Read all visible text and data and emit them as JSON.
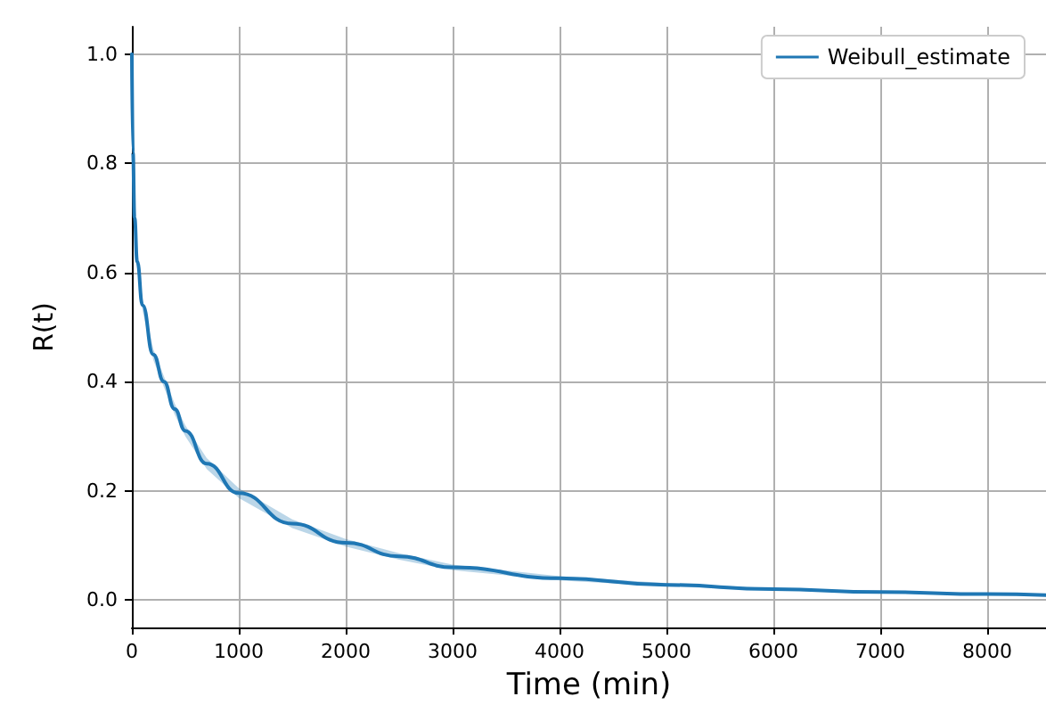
{
  "chart_data": {
    "type": "line",
    "xlabel": "Time (min)",
    "ylabel": "R(t)",
    "x": [
      0,
      10,
      25,
      50,
      100,
      200,
      300,
      400,
      500,
      700,
      1000,
      1500,
      2000,
      2500,
      3000,
      4000,
      5000,
      6000,
      7000,
      8000,
      8550
    ],
    "series": [
      {
        "name": "Weibull_estimate",
        "color": "#1f77b4",
        "values": [
          1.0,
          0.82,
          0.7,
          0.62,
          0.54,
          0.45,
          0.4,
          0.35,
          0.31,
          0.25,
          0.196,
          0.14,
          0.105,
          0.08,
          0.06,
          0.04,
          0.028,
          0.02,
          0.015,
          0.011,
          0.009
        ],
        "lower": [
          1.0,
          0.81,
          0.69,
          0.61,
          0.53,
          0.44,
          0.39,
          0.34,
          0.3,
          0.24,
          0.187,
          0.132,
          0.098,
          0.074,
          0.055,
          0.036,
          0.025,
          0.018,
          0.013,
          0.009,
          0.007
        ],
        "upper": [
          1.0,
          0.83,
          0.71,
          0.63,
          0.55,
          0.46,
          0.41,
          0.36,
          0.32,
          0.26,
          0.205,
          0.148,
          0.112,
          0.086,
          0.065,
          0.044,
          0.031,
          0.022,
          0.017,
          0.013,
          0.011
        ]
      }
    ],
    "xlim": [
      0,
      8550
    ],
    "xticks": [
      0,
      1000,
      2000,
      3000,
      4000,
      5000,
      6000,
      7000,
      8000
    ],
    "ylim": [
      -0.05,
      1.05
    ],
    "yticks": [
      {
        "value": 0,
        "label": "0.0"
      },
      {
        "value": 0.2,
        "label": "0.2"
      },
      {
        "value": 0.4,
        "label": "0.4"
      },
      {
        "value": 0.6,
        "label": "0.6"
      },
      {
        "value": 0.8,
        "label": "0.8"
      },
      {
        "value": 1,
        "label": "1.0"
      }
    ],
    "grid": true,
    "legend": "top right",
    "marker": "none",
    "line_style": "solid"
  }
}
